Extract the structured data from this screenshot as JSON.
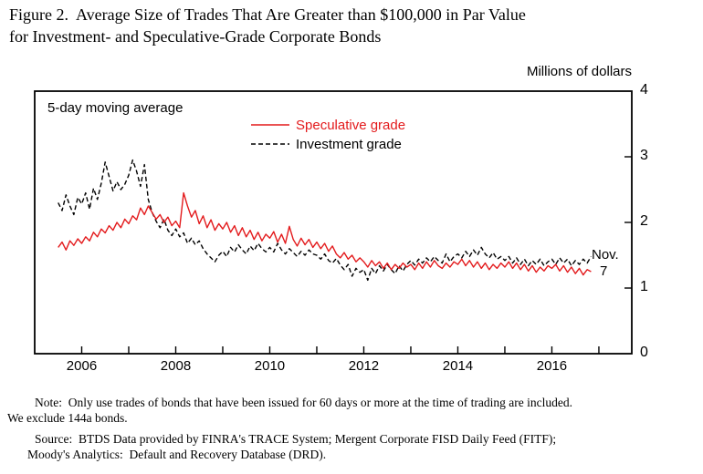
{
  "figure": {
    "title_line1": "Figure 2.  Average Size of Trades That Are Greater than $100,000 in Par Value",
    "title_line2": "for Investment- and Speculative-Grade Corporate Bonds",
    "unit_label": "Millions of dollars",
    "moving_average_label": "5-day moving average",
    "end_label_line1": "Nov.",
    "end_label_line2": "7",
    "note_line1": "Note:  Only use trades of bonds that have been issued for 60 days or more at the time of trading are included.",
    "note_line2": "We exclude 144a bonds.",
    "source_line1": "Source:  BTDS Data provided by FINRA's TRACE System; Mergent Corporate FISD Daily Feed (FITF);",
    "source_line2": "Moody's Analytics:  Default and Recovery Database (DRD)."
  },
  "chart_data": {
    "type": "line",
    "title": "Average Size of Trades That Are Greater than $100,000 in Par Value for Investment- and Speculative-Grade Corporate Bonds",
    "xlabel": "",
    "ylabel": "Millions of dollars",
    "ylim": [
      0,
      4
    ],
    "yticks": [
      0,
      1,
      2,
      3,
      4
    ],
    "xlim": [
      2005.0,
      2017.7
    ],
    "xtick_labels": [
      2006,
      2008,
      2010,
      2012,
      2014,
      2016
    ],
    "grid": false,
    "legend_position": "upper-center",
    "x_start": 2005.5,
    "x_step_years": 0.0833333,
    "annotations": [
      {
        "text": "Nov. 7",
        "x": 2016.95,
        "y": 1.4
      }
    ],
    "series": [
      {
        "name": "Speculative grade",
        "color": "#e31a1c",
        "style": "solid",
        "values": [
          1.62,
          1.7,
          1.58,
          1.72,
          1.65,
          1.75,
          1.68,
          1.78,
          1.72,
          1.85,
          1.78,
          1.9,
          1.84,
          1.95,
          1.88,
          2.0,
          1.92,
          2.05,
          1.98,
          2.1,
          2.04,
          2.22,
          2.12,
          2.25,
          2.15,
          2.05,
          2.12,
          2.0,
          2.08,
          1.95,
          2.02,
          1.92,
          2.45,
          2.25,
          2.08,
          2.18,
          1.98,
          2.1,
          1.92,
          2.04,
          1.88,
          1.98,
          1.9,
          2.0,
          1.85,
          1.95,
          1.8,
          1.92,
          1.78,
          1.88,
          1.74,
          1.85,
          1.72,
          1.82,
          1.76,
          1.86,
          1.7,
          1.82,
          1.68,
          1.94,
          1.74,
          1.64,
          1.76,
          1.66,
          1.74,
          1.62,
          1.7,
          1.6,
          1.68,
          1.56,
          1.64,
          1.52,
          1.46,
          1.54,
          1.44,
          1.5,
          1.4,
          1.46,
          1.4,
          1.32,
          1.42,
          1.34,
          1.4,
          1.3,
          1.38,
          1.28,
          1.36,
          1.3,
          1.38,
          1.32,
          1.36,
          1.28,
          1.38,
          1.3,
          1.4,
          1.32,
          1.42,
          1.34,
          1.3,
          1.38,
          1.32,
          1.4,
          1.36,
          1.44,
          1.34,
          1.42,
          1.32,
          1.4,
          1.3,
          1.38,
          1.28,
          1.36,
          1.3,
          1.38,
          1.32,
          1.4,
          1.3,
          1.38,
          1.28,
          1.36,
          1.26,
          1.34,
          1.24,
          1.32,
          1.26,
          1.34,
          1.3,
          1.36,
          1.26,
          1.34,
          1.24,
          1.32,
          1.22,
          1.3,
          1.2,
          1.28,
          1.25
        ]
      },
      {
        "name": "Investment grade",
        "color": "#000000",
        "style": "dashed",
        "values": [
          2.3,
          2.18,
          2.42,
          2.25,
          2.12,
          2.38,
          2.28,
          2.45,
          2.2,
          2.52,
          2.35,
          2.6,
          2.92,
          2.7,
          2.48,
          2.62,
          2.5,
          2.58,
          2.72,
          2.95,
          2.78,
          2.55,
          2.88,
          2.35,
          2.15,
          2.02,
          1.92,
          2.05,
          1.88,
          1.8,
          1.9,
          1.78,
          1.84,
          1.68,
          1.76,
          1.66,
          1.72,
          1.6,
          1.52,
          1.46,
          1.4,
          1.5,
          1.56,
          1.48,
          1.62,
          1.55,
          1.66,
          1.58,
          1.52,
          1.64,
          1.57,
          1.68,
          1.6,
          1.55,
          1.62,
          1.55,
          1.68,
          1.58,
          1.52,
          1.6,
          1.54,
          1.48,
          1.56,
          1.5,
          1.58,
          1.52,
          1.5,
          1.44,
          1.52,
          1.42,
          1.38,
          1.45,
          1.35,
          1.28,
          1.36,
          1.18,
          1.3,
          1.24,
          1.28,
          1.12,
          1.3,
          1.22,
          1.34,
          1.26,
          1.36,
          1.28,
          1.22,
          1.34,
          1.26,
          1.36,
          1.42,
          1.35,
          1.44,
          1.38,
          1.46,
          1.4,
          1.48,
          1.42,
          1.38,
          1.52,
          1.4,
          1.48,
          1.52,
          1.46,
          1.56,
          1.48,
          1.58,
          1.5,
          1.62,
          1.52,
          1.46,
          1.54,
          1.44,
          1.48,
          1.42,
          1.48,
          1.38,
          1.46,
          1.36,
          1.44,
          1.34,
          1.42,
          1.36,
          1.44,
          1.34,
          1.4,
          1.44,
          1.36,
          1.46,
          1.38,
          1.44,
          1.34,
          1.42,
          1.36,
          1.44,
          1.38,
          1.48
        ]
      }
    ]
  }
}
